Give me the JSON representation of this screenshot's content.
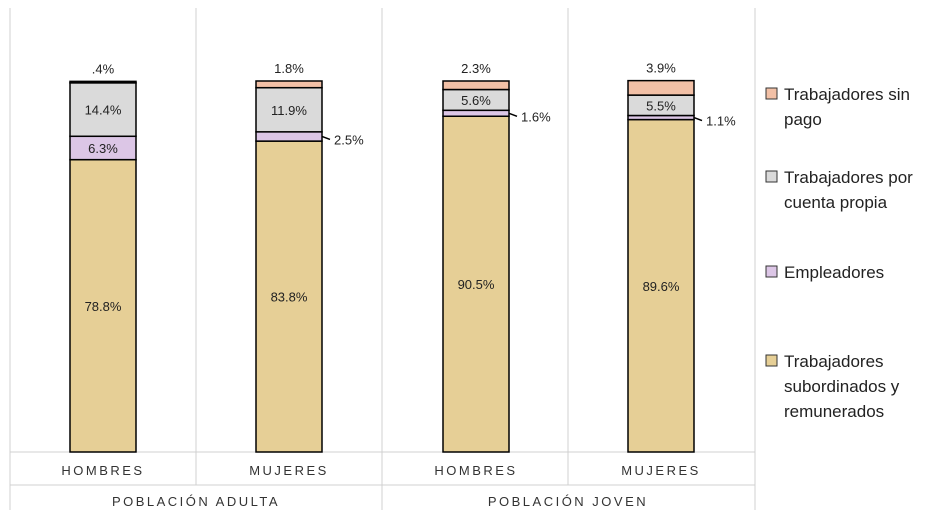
{
  "chart_data": {
    "type": "bar",
    "stacked": true,
    "groups": [
      {
        "label": "POBLACIÓN ADULTA",
        "categories": [
          "HOMBRES",
          "MUJERES"
        ]
      },
      {
        "label": "POBLACIÓN JOVEN",
        "categories": [
          "HOMBRES",
          "MUJERES"
        ]
      }
    ],
    "categories": [
      "HOMBRES",
      "MUJERES",
      "HOMBRES",
      "MUJERES"
    ],
    "series": [
      {
        "name": "Trabajadores subordinados y remunerados",
        "color": "#e6cf96",
        "values": [
          78.8,
          83.8,
          90.5,
          89.6
        ],
        "labels": [
          "78.8%",
          "83.8%",
          "90.5%",
          "89.6%"
        ]
      },
      {
        "name": "Empleadores",
        "color": "#dcc6e6",
        "values": [
          6.3,
          2.5,
          1.6,
          1.1
        ],
        "labels": [
          "6.3%",
          "2.5%",
          "1.6%",
          "1.1%"
        ]
      },
      {
        "name": "Trabajadores por cuenta propia",
        "color": "#dadada",
        "values": [
          14.4,
          11.9,
          5.6,
          5.5
        ],
        "labels": [
          "14.4%",
          "11.9%",
          "5.6%",
          "5.5%"
        ]
      },
      {
        "name": "Trabajadores sin pago",
        "color": "#f2c0a6",
        "values": [
          0.4,
          1.8,
          2.3,
          3.9
        ],
        "labels": [
          ".4%",
          "1.8%",
          "2.3%",
          "3.9%"
        ]
      }
    ],
    "ylim": [
      0,
      100
    ],
    "legend_position": "right",
    "legend_order": [
      "Trabajadores sin pago",
      "Trabajadores por cuenta propia",
      "Empleadores",
      "Trabajadores subordinados y remunerados"
    ],
    "legend_lines": {
      "Trabajadores sin pago": [
        "Trabajadores sin",
        "pago"
      ],
      "Trabajadores por cuenta propia": [
        "Trabajadores por",
        "cuenta propia"
      ],
      "Empleadores": [
        "Empleadores"
      ],
      "Trabajadores subordinados y remunerados": [
        "Trabajadores",
        "subordinados y",
        "remunerados"
      ]
    },
    "grid": false
  }
}
